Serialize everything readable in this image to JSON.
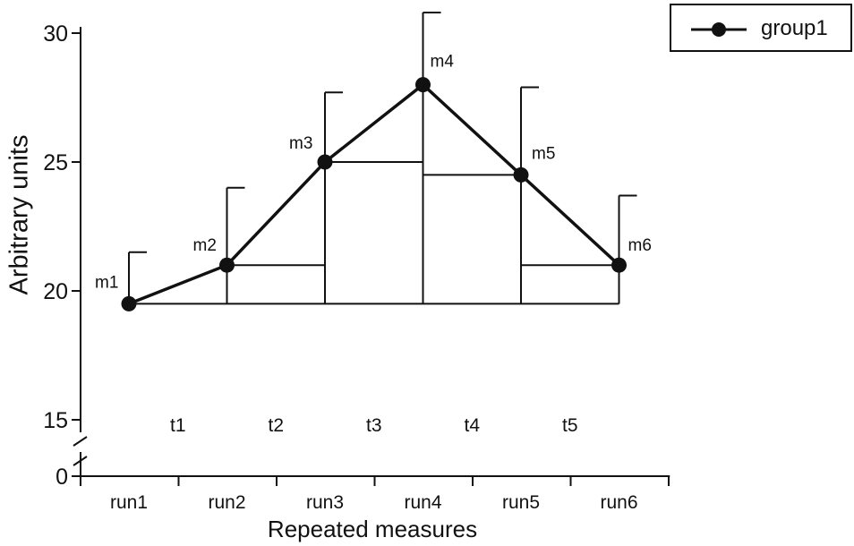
{
  "chart_data": {
    "type": "line",
    "xlabel": "Repeated measures",
    "ylabel": "Arbitrary units",
    "categories": [
      "run1",
      "run2",
      "run3",
      "run4",
      "run5",
      "run6"
    ],
    "series": [
      {
        "name": "group1",
        "values": [
          19.5,
          21.0,
          25.0,
          28.0,
          24.5,
          21.0
        ],
        "error_upper": [
          21.5,
          24.0,
          27.7,
          30.8,
          27.9,
          23.7
        ],
        "point_labels": [
          "m1",
          "m2",
          "m3",
          "m4",
          "m5",
          "m6"
        ]
      }
    ],
    "interval_labels": [
      "t1",
      "t2",
      "t3",
      "t4",
      "t5"
    ],
    "yticks": [
      0,
      15,
      20,
      25,
      30
    ],
    "ylim_broken": [
      [
        0,
        0
      ],
      [
        15,
        30
      ]
    ],
    "baseline": 19.5,
    "legend_position": "top-right",
    "grid": false,
    "colors": {
      "line": "#111111",
      "marker": "#111111",
      "background": "#ffffff"
    }
  }
}
